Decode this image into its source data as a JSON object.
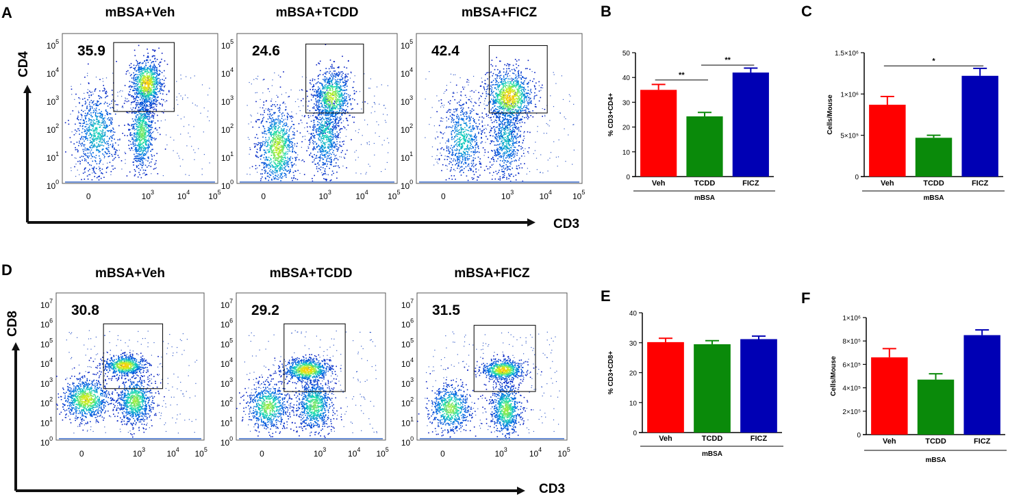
{
  "figure": {
    "facs_rows": [
      {
        "row_letter": "A",
        "x_axis_label": "CD3",
        "y_axis_label": "CD4",
        "plots": [
          {
            "title": "mBSA+Veh",
            "gate_percent": "35.9"
          },
          {
            "title": "mBSA+TCDD",
            "gate_percent": "24.6"
          },
          {
            "title": "mBSA+FICZ",
            "gate_percent": "42.4"
          }
        ],
        "y_ticks": [
          {
            "base": "10",
            "exp": "5"
          },
          {
            "base": "10",
            "exp": "4"
          },
          {
            "base": "10",
            "exp": "3"
          },
          {
            "base": "10",
            "exp": "2"
          },
          {
            "base": "10",
            "exp": "1"
          },
          {
            "base": "10",
            "exp": "0"
          }
        ],
        "x_ticks": [
          {
            "base": "0",
            "exp": ""
          },
          {
            "base": "10",
            "exp": "3"
          },
          {
            "base": "10",
            "exp": "4"
          },
          {
            "base": "10",
            "exp": "5"
          }
        ]
      },
      {
        "row_letter": "D",
        "x_axis_label": "CD3",
        "y_axis_label": "CD8",
        "plots": [
          {
            "title": "mBSA+Veh",
            "gate_percent": "30.8"
          },
          {
            "title": "mBSA+TCDD",
            "gate_percent": "29.2"
          },
          {
            "title": "mBSA+FICZ",
            "gate_percent": "31.5"
          }
        ],
        "y_ticks": [
          {
            "base": "10",
            "exp": "7"
          },
          {
            "base": "10",
            "exp": "6"
          },
          {
            "base": "10",
            "exp": "5"
          },
          {
            "base": "10",
            "exp": "4"
          },
          {
            "base": "10",
            "exp": "3"
          },
          {
            "base": "10",
            "exp": "2"
          },
          {
            "base": "10",
            "exp": "1"
          },
          {
            "base": "10",
            "exp": "0"
          }
        ],
        "x_ticks": [
          {
            "base": "0",
            "exp": ""
          },
          {
            "base": "10",
            "exp": "3"
          },
          {
            "base": "10",
            "exp": "4"
          },
          {
            "base": "10",
            "exp": "5"
          }
        ]
      }
    ],
    "colors": {
      "veh": "#ff0000",
      "tcdd": "#0a8a0a",
      "ficz": "#0000b4"
    }
  },
  "chart_data": [
    {
      "panel": "B",
      "type": "bar",
      "categories": [
        "Veh",
        "TCDD",
        "FICZ"
      ],
      "values": [
        35,
        24.3,
        42
      ],
      "errors": [
        2.2,
        1.6,
        1.8
      ],
      "ylabel": "% CD3+CD4+",
      "group_label": "mBSA",
      "ylim": [
        0,
        50
      ],
      "yticks": [
        {
          "value": 0,
          "label": "0"
        },
        {
          "value": 10,
          "label": "10"
        },
        {
          "value": 20,
          "label": "20"
        },
        {
          "value": 30,
          "label": "30"
        },
        {
          "value": 40,
          "label": "40"
        },
        {
          "value": 50,
          "label": "50"
        }
      ],
      "significance": [
        {
          "from": 0,
          "to": 1,
          "label": "**",
          "y": 39
        },
        {
          "from": 1,
          "to": 2,
          "label": "**",
          "y": 45
        }
      ]
    },
    {
      "panel": "C",
      "type": "bar",
      "categories": [
        "Veh",
        "TCDD",
        "FICZ"
      ],
      "values": [
        870000,
        470000,
        1220000
      ],
      "errors": [
        100000,
        30000,
        90000
      ],
      "ylabel": "Cells/Mouse",
      "group_label": "mBSA",
      "ylim": [
        0,
        1500000
      ],
      "yticks": [
        {
          "value": 0,
          "label": "0"
        },
        {
          "value": 500000,
          "label": "5×10⁵"
        },
        {
          "value": 1000000,
          "label": "1×10⁶"
        },
        {
          "value": 1500000,
          "label": "1.5×10⁶"
        }
      ],
      "significance": [
        {
          "from": 0,
          "to": 2,
          "label": "*",
          "y": 1340000
        }
      ]
    },
    {
      "panel": "E",
      "type": "bar",
      "categories": [
        "Veh",
        "TCDD",
        "FICZ"
      ],
      "values": [
        30.2,
        29.5,
        31.2
      ],
      "errors": [
        1.3,
        1.2,
        1.0
      ],
      "ylabel": "% CD3+CD8+",
      "group_label": "mBSA",
      "ylim": [
        0,
        40
      ],
      "yticks": [
        {
          "value": 0,
          "label": "0"
        },
        {
          "value": 10,
          "label": "10"
        },
        {
          "value": 20,
          "label": "20"
        },
        {
          "value": 30,
          "label": "30"
        },
        {
          "value": 40,
          "label": "40"
        }
      ],
      "significance": []
    },
    {
      "panel": "F",
      "type": "bar",
      "categories": [
        "Veh",
        "TCDD",
        "FICZ"
      ],
      "values": [
        660000,
        470000,
        850000
      ],
      "errors": [
        75000,
        50000,
        45000
      ],
      "ylabel": "Cells/Mouse",
      "group_label": "mBSA",
      "ylim": [
        0,
        1000000
      ],
      "yticks": [
        {
          "value": 0,
          "label": "0"
        },
        {
          "value": 200000,
          "label": "2×10⁵"
        },
        {
          "value": 400000,
          "label": "4×10⁵"
        },
        {
          "value": 600000,
          "label": "6×10⁵"
        },
        {
          "value": 800000,
          "label": "8×10⁵"
        },
        {
          "value": 1000000,
          "label": "1×10⁶"
        }
      ],
      "significance": []
    }
  ]
}
